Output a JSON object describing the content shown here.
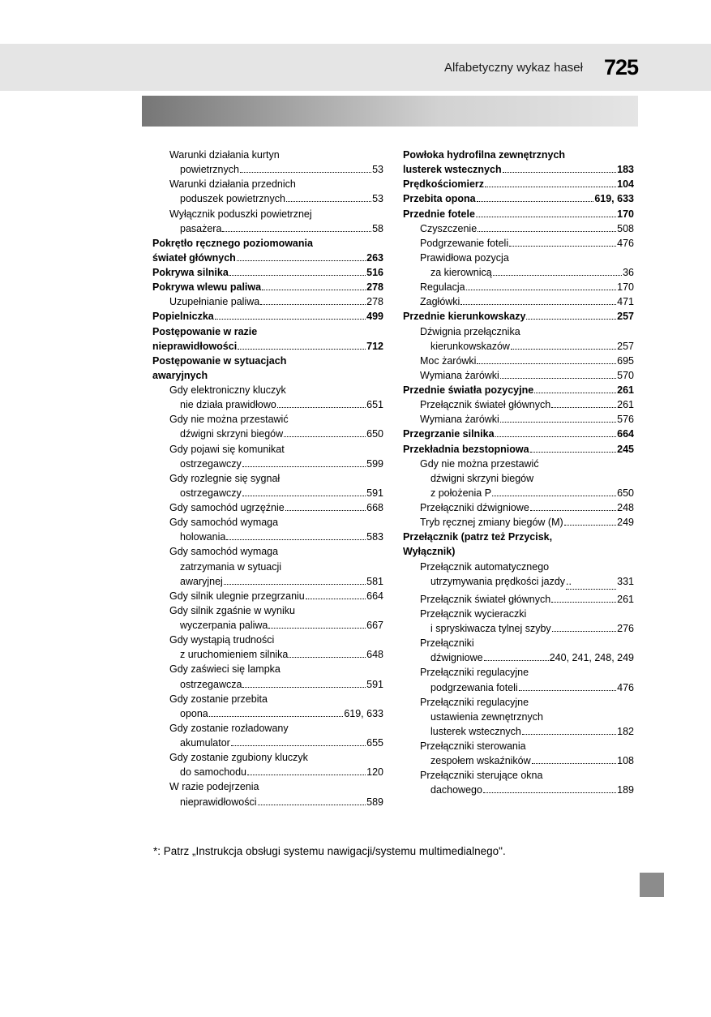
{
  "header": {
    "title": "Alfabetyczny wykaz haseł",
    "page_number": "725"
  },
  "left_column": [
    {
      "text": "Warunki działania kurtyn",
      "indent": 1,
      "bold": false,
      "page": null
    },
    {
      "text": "powietrznych",
      "indent": 2,
      "bold": false,
      "page": "53"
    },
    {
      "text": "Warunki działania przednich",
      "indent": 1,
      "bold": false,
      "page": null
    },
    {
      "text": "poduszek powietrznych",
      "indent": 2,
      "bold": false,
      "page": "53"
    },
    {
      "text": "Wyłącznik poduszki powietrznej",
      "indent": 1,
      "bold": false,
      "page": null
    },
    {
      "text": "pasażera",
      "indent": 2,
      "bold": false,
      "page": "58"
    },
    {
      "text": "Pokrętło ręcznego poziomowania",
      "indent": 0,
      "bold": true,
      "page": null
    },
    {
      "text": " świateł głównych",
      "indent": 0,
      "bold": true,
      "page": "263"
    },
    {
      "text": "Pokrywa silnika",
      "indent": 0,
      "bold": true,
      "page": "516"
    },
    {
      "text": "Pokrywa wlewu paliwa",
      "indent": 0,
      "bold": true,
      "page": "278"
    },
    {
      "text": "Uzupełnianie paliwa",
      "indent": 1,
      "bold": false,
      "page": "278"
    },
    {
      "text": "Popielniczka",
      "indent": 0,
      "bold": true,
      "page": "499"
    },
    {
      "text": "Postępowanie w razie",
      "indent": 0,
      "bold": true,
      "page": null
    },
    {
      "text": " nieprawidłowości",
      "indent": 0,
      "bold": true,
      "page": "712"
    },
    {
      "text": "Postępowanie w sytuacjach",
      "indent": 0,
      "bold": true,
      "page": null
    },
    {
      "text": " awaryjnych",
      "indent": 0,
      "bold": true,
      "page": null
    },
    {
      "text": "Gdy elektroniczny kluczyk",
      "indent": 1,
      "bold": false,
      "page": null
    },
    {
      "text": "nie działa prawidłowo",
      "indent": 2,
      "bold": false,
      "page": "651"
    },
    {
      "text": "Gdy nie można przestawić",
      "indent": 1,
      "bold": false,
      "page": null
    },
    {
      "text": "dźwigni skrzyni biegów",
      "indent": 2,
      "bold": false,
      "page": "650"
    },
    {
      "text": "Gdy pojawi się komunikat",
      "indent": 1,
      "bold": false,
      "page": null
    },
    {
      "text": "ostrzegawczy",
      "indent": 2,
      "bold": false,
      "page": "599"
    },
    {
      "text": "Gdy rozlegnie się sygnał",
      "indent": 1,
      "bold": false,
      "page": null
    },
    {
      "text": "ostrzegawczy",
      "indent": 2,
      "bold": false,
      "page": "591"
    },
    {
      "text": "Gdy samochód ugrzęźnie",
      "indent": 1,
      "bold": false,
      "page": "668"
    },
    {
      "text": "Gdy samochód wymaga",
      "indent": 1,
      "bold": false,
      "page": null
    },
    {
      "text": "holowania",
      "indent": 2,
      "bold": false,
      "page": "583"
    },
    {
      "text": "Gdy samochód wymaga",
      "indent": 1,
      "bold": false,
      "page": null
    },
    {
      "text": "zatrzymania w sytuacji",
      "indent": 2,
      "bold": false,
      "page": null
    },
    {
      "text": "awaryjnej",
      "indent": 2,
      "bold": false,
      "page": "581"
    },
    {
      "text": "Gdy silnik ulegnie przegrzaniu",
      "indent": 1,
      "bold": false,
      "page": "664"
    },
    {
      "text": "Gdy silnik zgaśnie w wyniku",
      "indent": 1,
      "bold": false,
      "page": null
    },
    {
      "text": "wyczerpania paliwa",
      "indent": 2,
      "bold": false,
      "page": "667"
    },
    {
      "text": "Gdy wystąpią trudności",
      "indent": 1,
      "bold": false,
      "page": null
    },
    {
      "text": "z uruchomieniem silnika",
      "indent": 2,
      "bold": false,
      "page": "648"
    },
    {
      "text": "Gdy zaświeci się lampka",
      "indent": 1,
      "bold": false,
      "page": null
    },
    {
      "text": "ostrzegawcza",
      "indent": 2,
      "bold": false,
      "page": "591"
    },
    {
      "text": "Gdy zostanie przebita",
      "indent": 1,
      "bold": false,
      "page": null
    },
    {
      "text": "opona",
      "indent": 2,
      "bold": false,
      "page": "619, 633"
    },
    {
      "text": "Gdy zostanie rozładowany",
      "indent": 1,
      "bold": false,
      "page": null
    },
    {
      "text": "akumulator",
      "indent": 2,
      "bold": false,
      "page": "655"
    },
    {
      "text": "Gdy zostanie zgubiony kluczyk",
      "indent": 1,
      "bold": false,
      "page": null
    },
    {
      "text": "do samochodu",
      "indent": 2,
      "bold": false,
      "page": "120"
    },
    {
      "text": "W razie podejrzenia",
      "indent": 1,
      "bold": false,
      "page": null
    },
    {
      "text": "nieprawidłowości",
      "indent": 2,
      "bold": false,
      "page": "589"
    }
  ],
  "right_column": [
    {
      "text": "Powłoka hydrofilna zewnętrznych",
      "indent": 0,
      "bold": true,
      "page": null
    },
    {
      "text": " lusterek wstecznych",
      "indent": 0,
      "bold": true,
      "page": "183"
    },
    {
      "text": "Prędkościomierz",
      "indent": 0,
      "bold": true,
      "page": "104"
    },
    {
      "text": "Przebita opona",
      "indent": 0,
      "bold": true,
      "page": "619, 633"
    },
    {
      "text": "Przednie fotele",
      "indent": 0,
      "bold": true,
      "page": "170"
    },
    {
      "text": "Czyszczenie",
      "indent": 1,
      "bold": false,
      "page": "508"
    },
    {
      "text": "Podgrzewanie foteli",
      "indent": 1,
      "bold": false,
      "page": "476"
    },
    {
      "text": "Prawidłowa pozycja",
      "indent": 1,
      "bold": false,
      "page": null
    },
    {
      "text": "za kierownicą",
      "indent": 2,
      "bold": false,
      "page": "36"
    },
    {
      "text": "Regulacja",
      "indent": 1,
      "bold": false,
      "page": "170"
    },
    {
      "text": "Zagłówki",
      "indent": 1,
      "bold": false,
      "page": "471"
    },
    {
      "text": "Przednie kierunkowskazy",
      "indent": 0,
      "bold": true,
      "page": "257"
    },
    {
      "text": "Dźwignia przełącznika",
      "indent": 1,
      "bold": false,
      "page": null
    },
    {
      "text": "kierunkowskazów",
      "indent": 2,
      "bold": false,
      "page": "257"
    },
    {
      "text": "Moc żarówki",
      "indent": 1,
      "bold": false,
      "page": "695"
    },
    {
      "text": "Wymiana żarówki",
      "indent": 1,
      "bold": false,
      "page": "570"
    },
    {
      "text": "Przednie światła pozycyjne",
      "indent": 0,
      "bold": true,
      "page": "261"
    },
    {
      "text": "Przełącznik świateł głównych",
      "indent": 1,
      "bold": false,
      "page": "261"
    },
    {
      "text": "Wymiana żarówki",
      "indent": 1,
      "bold": false,
      "page": "576"
    },
    {
      "text": "Przegrzanie silnika",
      "indent": 0,
      "bold": true,
      "page": "664"
    },
    {
      "text": "Przekładnia bezstopniowa",
      "indent": 0,
      "bold": true,
      "page": "245"
    },
    {
      "text": "Gdy nie można przestawić",
      "indent": 1,
      "bold": false,
      "page": null
    },
    {
      "text": "dźwigni skrzyni biegów",
      "indent": 2,
      "bold": false,
      "page": null
    },
    {
      "text": "z położenia P",
      "indent": 2,
      "bold": false,
      "page": "650"
    },
    {
      "text": "Przełączniki dźwigniowe",
      "indent": 1,
      "bold": false,
      "page": "248"
    },
    {
      "text": "Tryb ręcznej zmiany biegów (M)",
      "indent": 1,
      "bold": false,
      "page": "249"
    },
    {
      "text": "Przełącznik (patrz też Przycisk,",
      "indent": 0,
      "bold": true,
      "page": null
    },
    {
      "text": " Wyłącznik)",
      "indent": 0,
      "bold": true,
      "page": null
    },
    {
      "text": "Przełącznik automatycznego",
      "indent": 1,
      "bold": false,
      "page": null
    },
    {
      "text": "utrzymywania prędkości jazdy",
      "indent": 2,
      "bold": false,
      "page": "331",
      "tight": true
    },
    {
      "text": "Przełącznik świateł głównych",
      "indent": 1,
      "bold": false,
      "page": "261"
    },
    {
      "text": "Przełącznik wycieraczki",
      "indent": 1,
      "bold": false,
      "page": null
    },
    {
      "text": "i spryskiwacza tylnej szyby",
      "indent": 2,
      "bold": false,
      "page": "276"
    },
    {
      "text": "Przełączniki",
      "indent": 1,
      "bold": false,
      "page": null
    },
    {
      "text": "dźwigniowe",
      "indent": 2,
      "bold": false,
      "page": "240, 241, 248, 249"
    },
    {
      "text": "Przełączniki regulacyjne",
      "indent": 1,
      "bold": false,
      "page": null
    },
    {
      "text": "podgrzewania foteli",
      "indent": 2,
      "bold": false,
      "page": "476"
    },
    {
      "text": "Przełączniki regulacyjne",
      "indent": 1,
      "bold": false,
      "page": null
    },
    {
      "text": "ustawienia zewnętrznych",
      "indent": 2,
      "bold": false,
      "page": null
    },
    {
      "text": "lusterek wstecznych",
      "indent": 2,
      "bold": false,
      "page": "182"
    },
    {
      "text": "Przełączniki sterowania",
      "indent": 1,
      "bold": false,
      "page": null
    },
    {
      "text": "zespołem wskaźników",
      "indent": 2,
      "bold": false,
      "page": "108"
    },
    {
      "text": "Przełączniki sterujące okna",
      "indent": 1,
      "bold": false,
      "page": null
    },
    {
      "text": "dachowego",
      "indent": 2,
      "bold": false,
      "page": "189"
    }
  ],
  "footnote": "*: Patrz „Instrukcja obsługi systemu nawigacji/systemu multimedialnego\"."
}
